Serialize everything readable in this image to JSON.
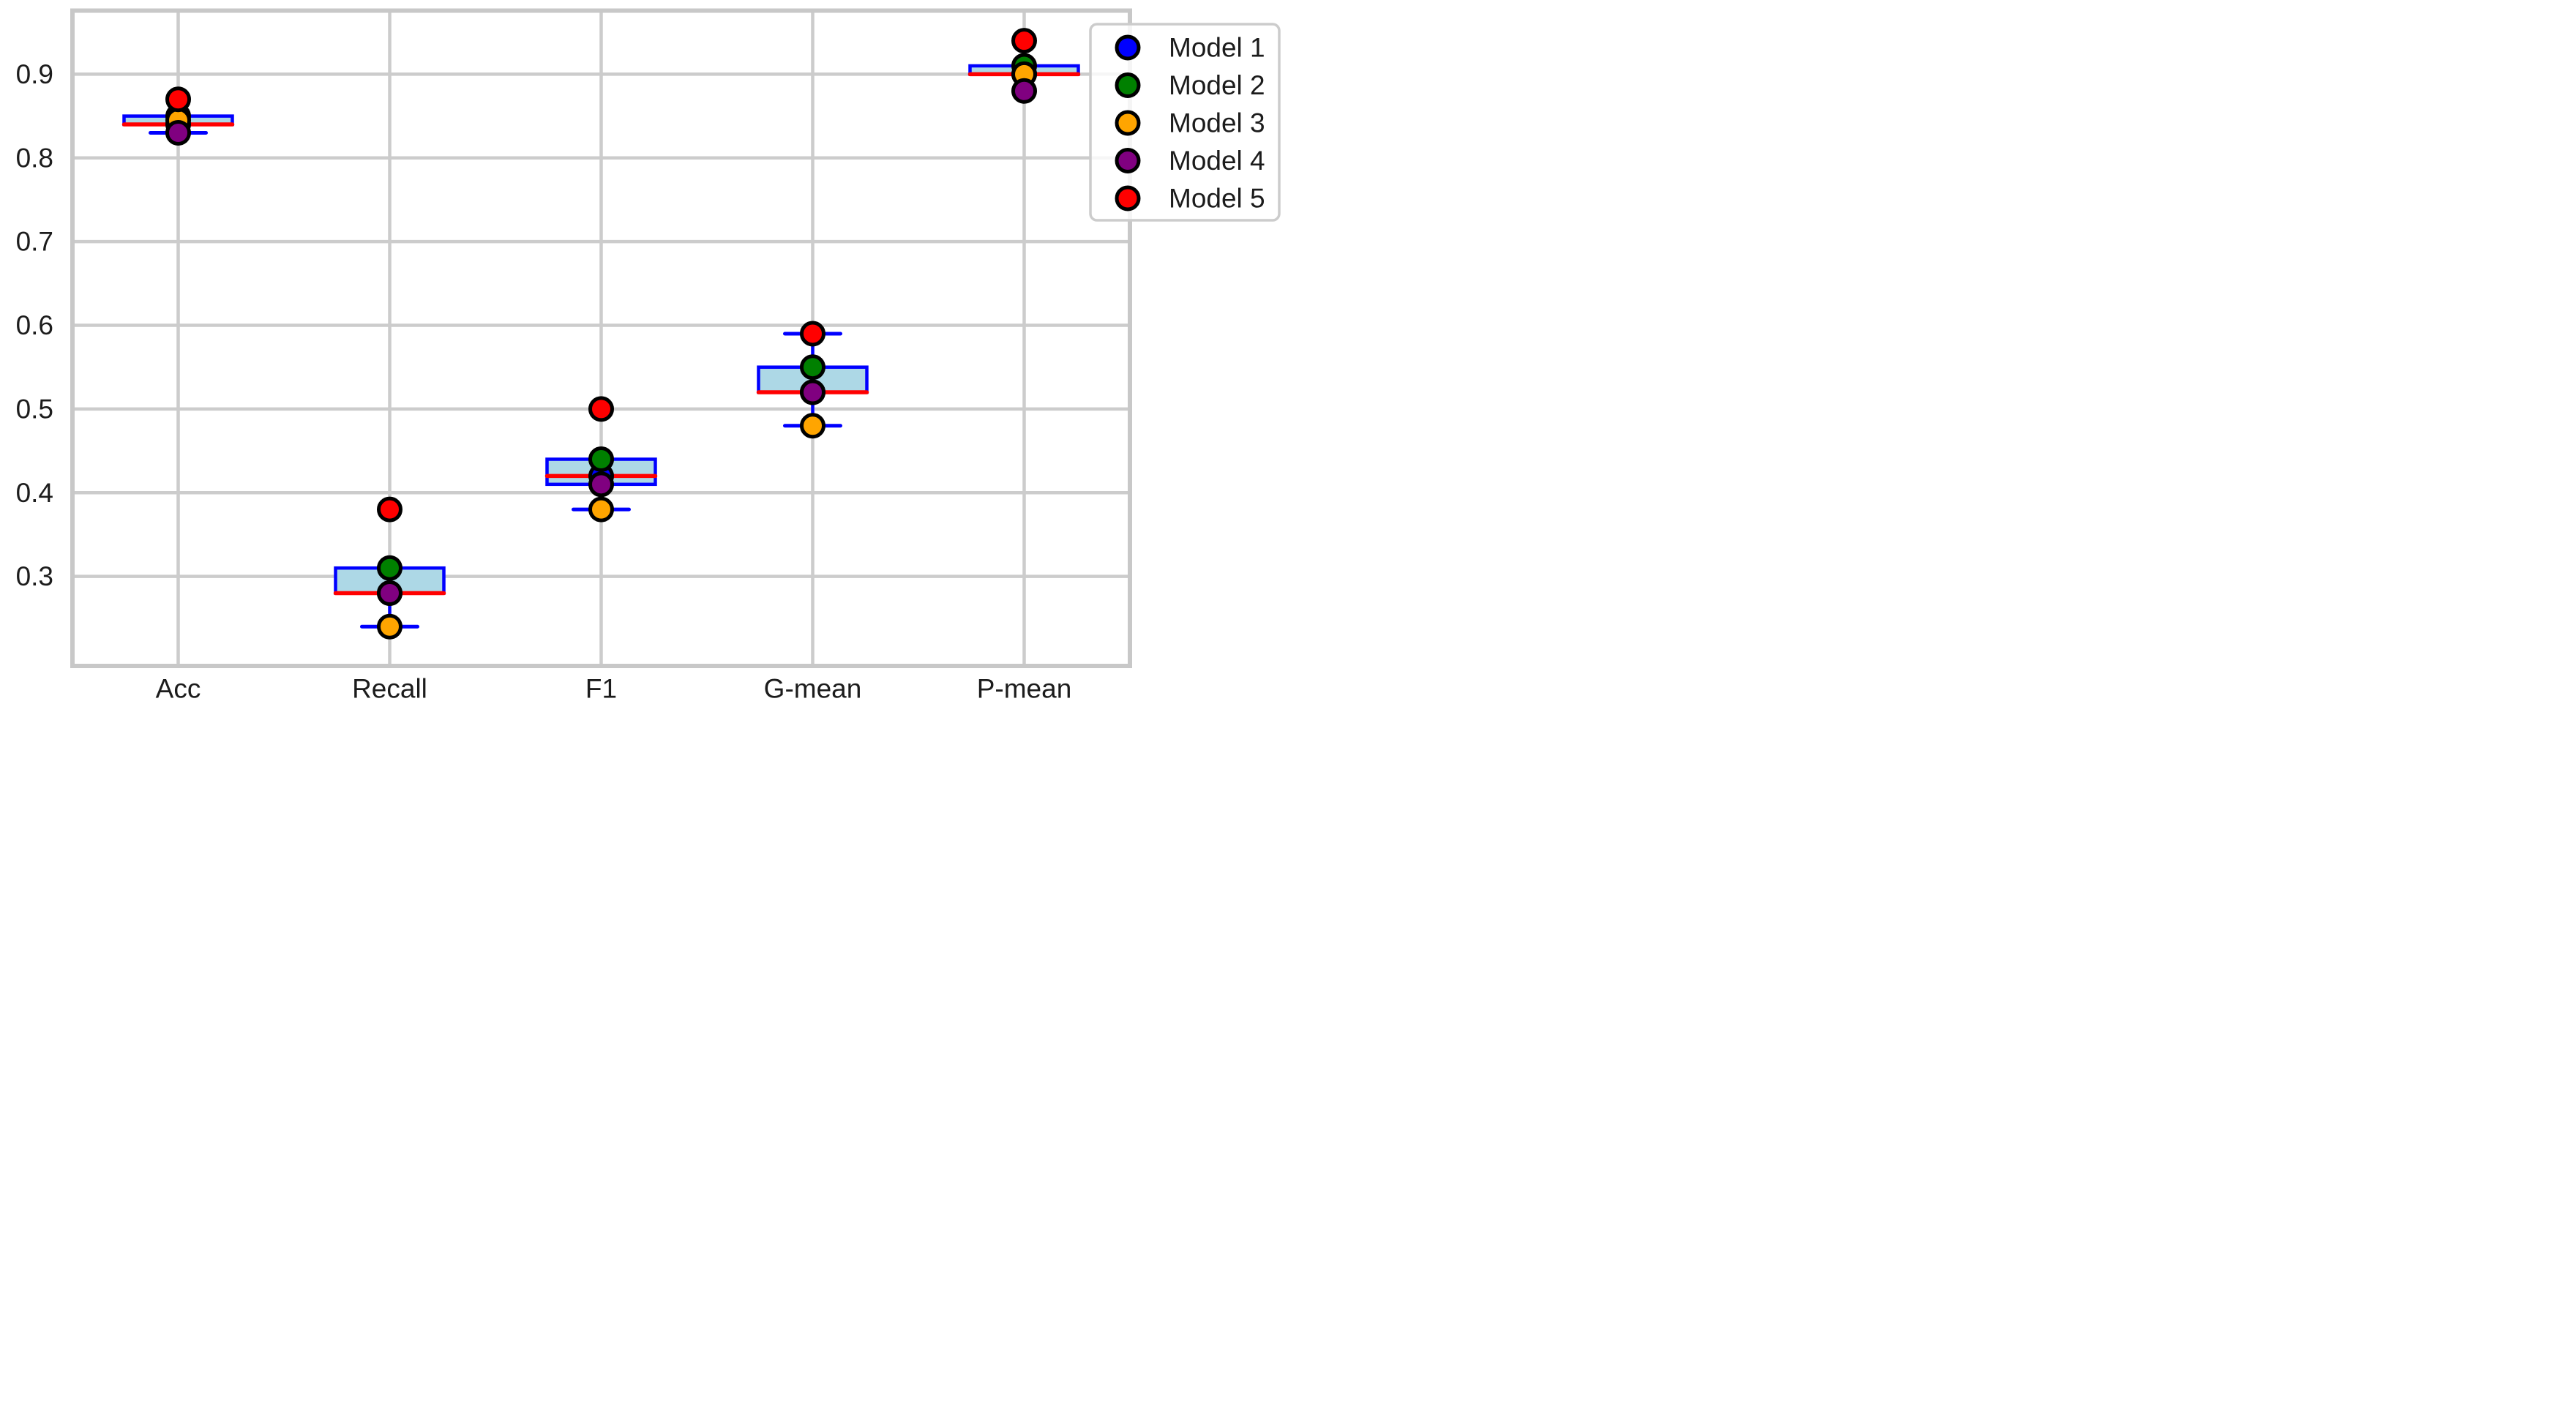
{
  "chart_data": {
    "type": "boxplot_scatter",
    "title": "",
    "xlabel": "",
    "ylabel": "",
    "categories": [
      "Acc",
      "Recall",
      "F1",
      "G-mean",
      "P-mean"
    ],
    "yticks": [
      0.9,
      0.8,
      0.7,
      0.6,
      0.5,
      0.4,
      0.3
    ],
    "ytick_format_decimals": 1,
    "ylim": [
      0.193,
      0.976
    ],
    "grid": true,
    "series": [
      {
        "name": "Model 1",
        "color": "#0000ff",
        "values": [
          0.84,
          0.28,
          0.42,
          0.52,
          0.9
        ]
      },
      {
        "name": "Model 2",
        "color": "#008000",
        "values": [
          0.85,
          0.31,
          0.44,
          0.55,
          0.91
        ]
      },
      {
        "name": "Model 3",
        "color": "#ffa500",
        "values": [
          0.845,
          0.24,
          0.38,
          0.48,
          0.9
        ]
      },
      {
        "name": "Model 4",
        "color": "#800080",
        "values": [
          0.83,
          0.28,
          0.41,
          0.52,
          0.88
        ]
      },
      {
        "name": "Model 5",
        "color": "#ff0000",
        "values": [
          0.87,
          0.38,
          0.5,
          0.59,
          0.94
        ]
      }
    ],
    "boxes": [
      {
        "category": "Acc",
        "q1": 0.84,
        "median": 0.84,
        "q3": 0.85,
        "whisker_low": 0.83,
        "whisker_high": null
      },
      {
        "category": "Recall",
        "q1": 0.28,
        "median": 0.28,
        "q3": 0.31,
        "whisker_low": 0.24,
        "whisker_high": null
      },
      {
        "category": "F1",
        "q1": 0.41,
        "median": 0.42,
        "q3": 0.44,
        "whisker_low": 0.38,
        "whisker_high": null
      },
      {
        "category": "G-mean",
        "q1": 0.52,
        "median": 0.52,
        "q3": 0.55,
        "whisker_low": 0.48,
        "whisker_high": 0.59
      },
      {
        "category": "P-mean",
        "q1": 0.9,
        "median": 0.9,
        "q3": 0.91,
        "whisker_low": null,
        "whisker_high": null
      }
    ],
    "legend": {
      "position": "upper-right",
      "entries": [
        "Model 1",
        "Model 2",
        "Model 3",
        "Model 4",
        "Model 5"
      ]
    },
    "style": {
      "box_fill": "#add8e6",
      "box_edge": "#0000ff",
      "median_color": "#ff0000",
      "whisker_color": "#0000ff",
      "marker_edge": "#000000",
      "grid_color": "#cccccc",
      "spine_color": "#c8c8c8",
      "text_color": "#1c1c1c",
      "legend_border": "#cccccc",
      "legend_fill": "rgba(255,255,255,0.82)"
    }
  }
}
